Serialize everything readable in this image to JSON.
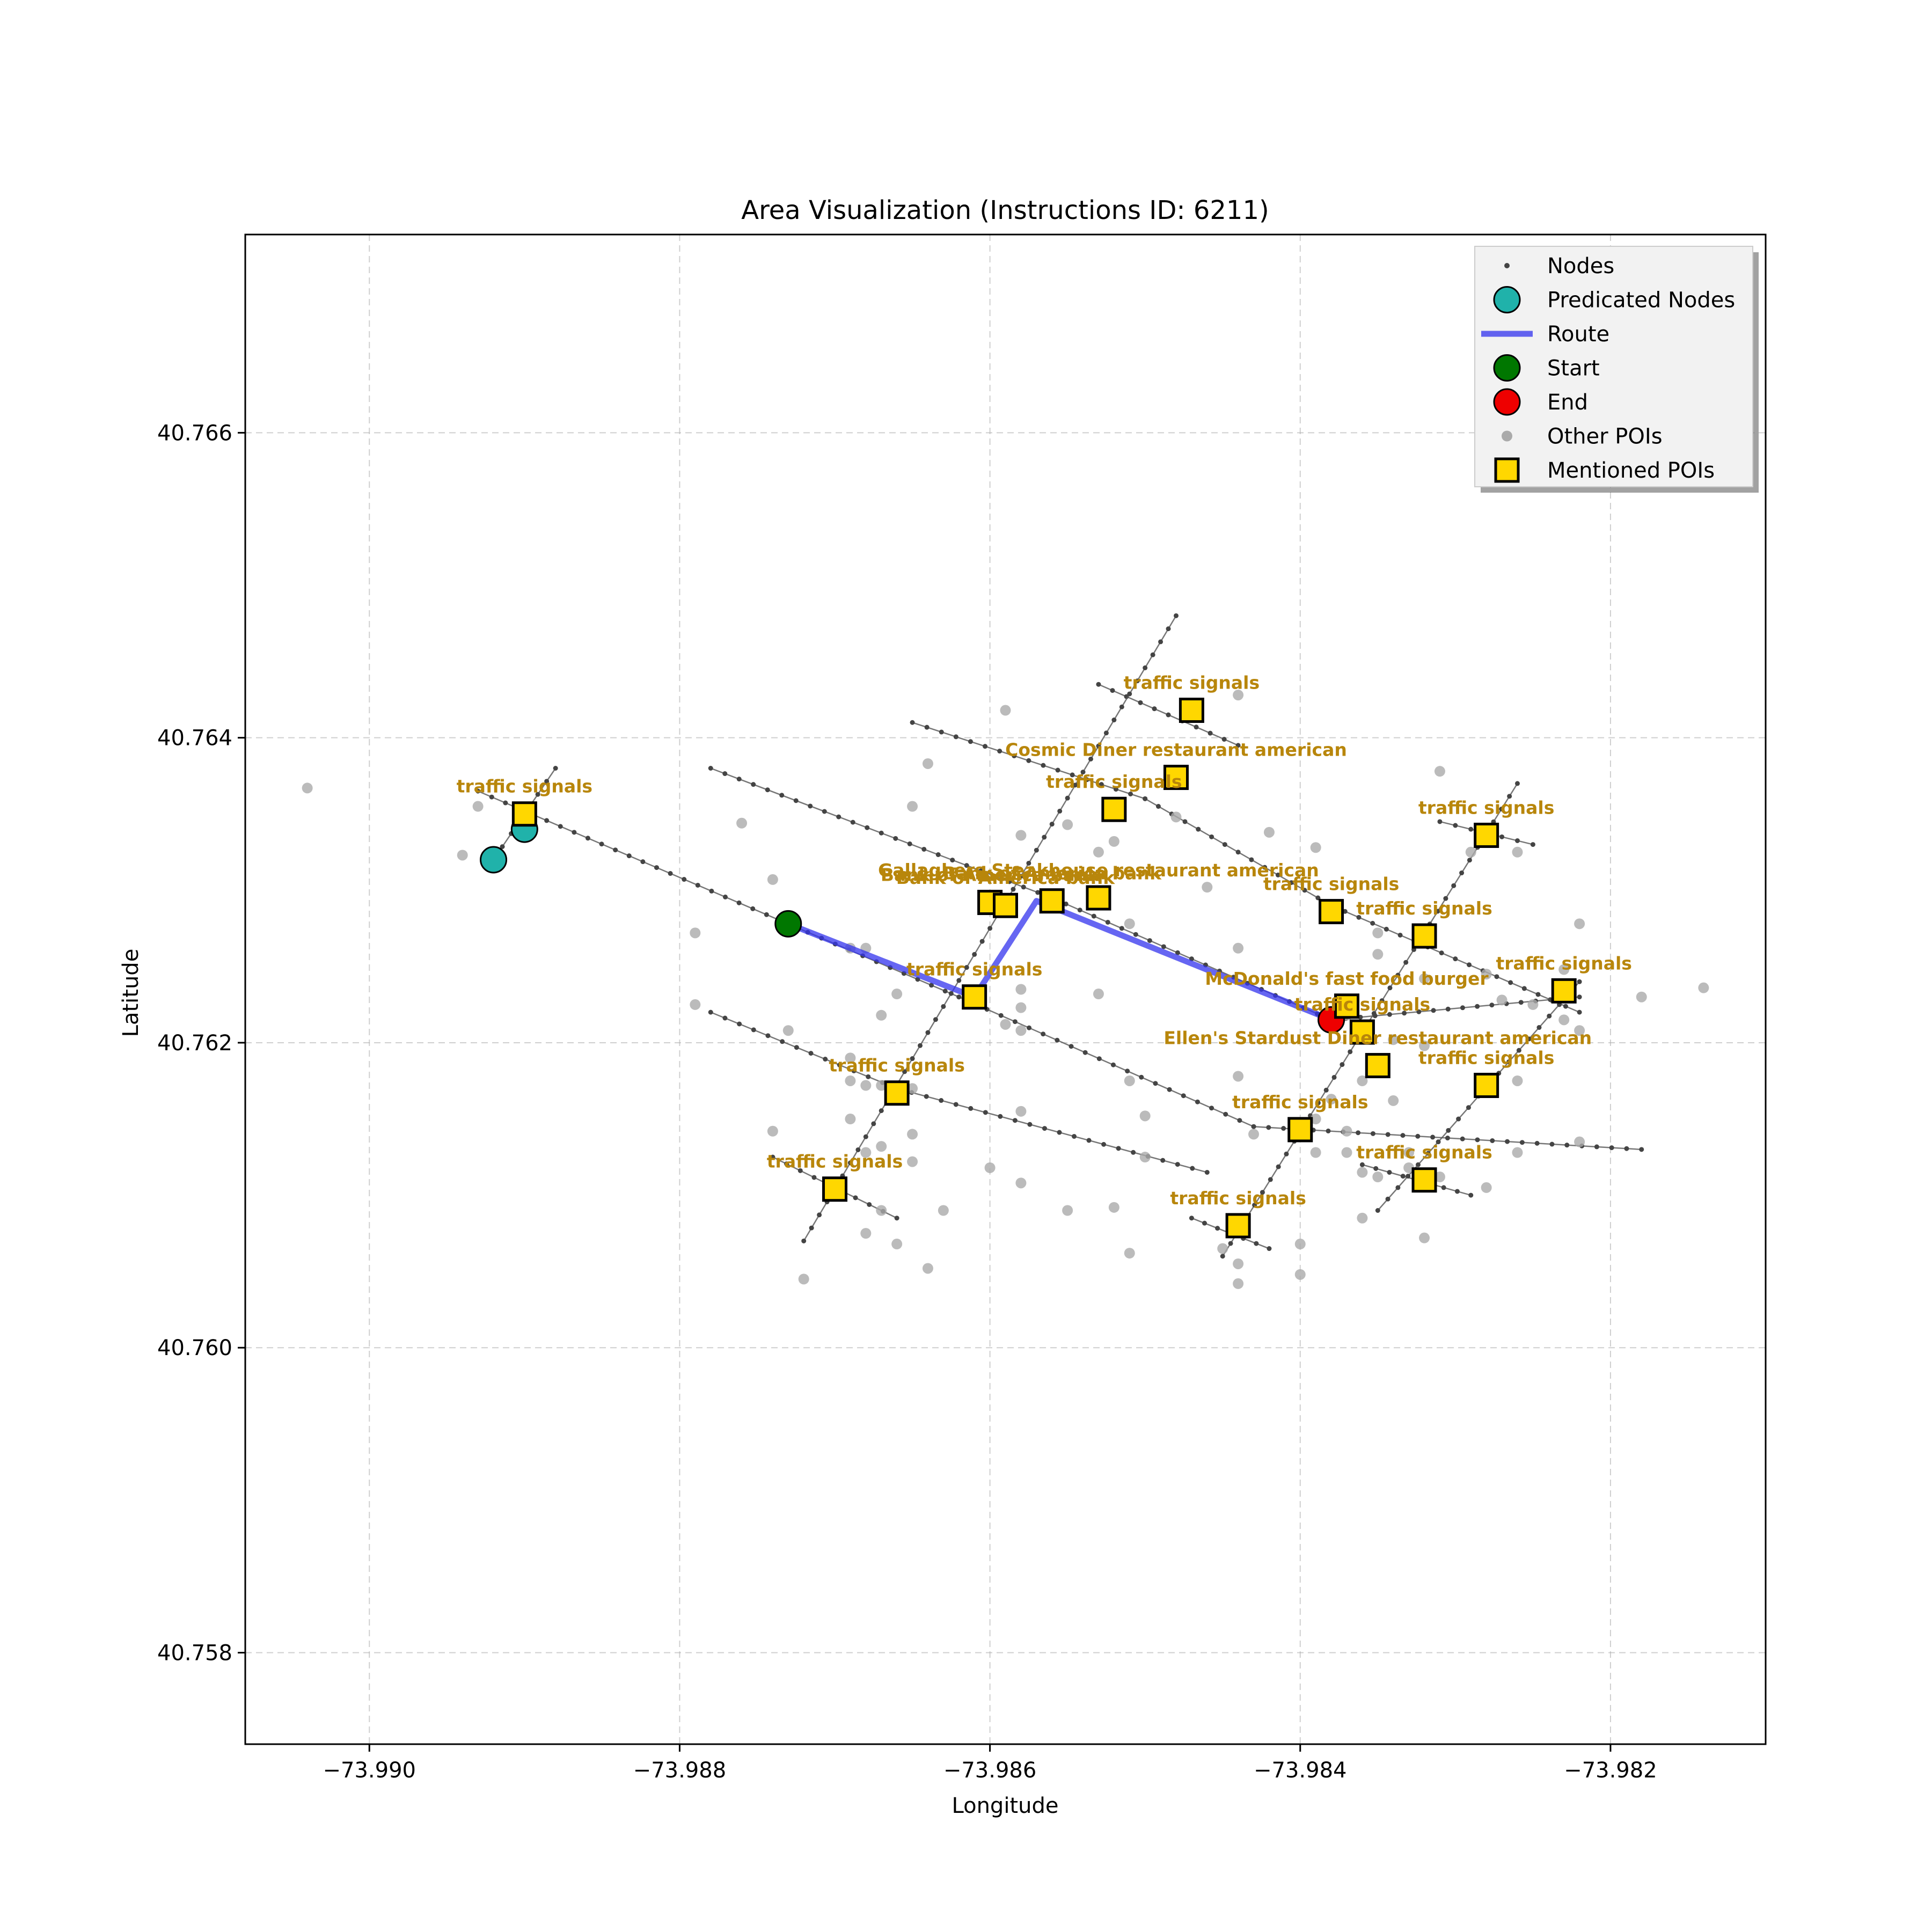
{
  "chart_data": {
    "type": "scatter",
    "title": "Area Visualization (Instructions ID: 6211)",
    "xlabel": "Longitude",
    "ylabel": "Latitude",
    "xlim": [
      -73.9908,
      -73.981
    ],
    "ylim": [
      40.7574,
      40.7673
    ],
    "xticks": [
      -73.99,
      -73.988,
      -73.986,
      -73.984,
      -73.982
    ],
    "xtick_labels": [
      "−73.990",
      "−73.988",
      "−73.986",
      "−73.984",
      "−73.982"
    ],
    "yticks": [
      40.758,
      40.76,
      40.762,
      40.764,
      40.766
    ],
    "ytick_labels": [
      "40.758",
      "40.760",
      "40.762",
      "40.764",
      "40.766"
    ],
    "grid": true,
    "legend_position": "top-right",
    "legend": [
      {
        "key": "nodes",
        "label": "Nodes"
      },
      {
        "key": "predicated",
        "label": "Predicated Nodes"
      },
      {
        "key": "route",
        "label": "Route"
      },
      {
        "key": "start",
        "label": "Start"
      },
      {
        "key": "end",
        "label": "End"
      },
      {
        "key": "other_pois",
        "label": "Other POIs"
      },
      {
        "key": "mentioned_pois",
        "label": "Mentioned POIs"
      }
    ],
    "colors": {
      "nodes": "#444444",
      "streets": "#555555",
      "predicated": "#20b2aa",
      "route": "#3333ee",
      "start": "#007700",
      "end": "#ee0000",
      "other_pois": "#aaaaaa",
      "mentioned_fill": "#ffd700",
      "mentioned_label": "#b8860b"
    },
    "streets": [
      [
        [
          -73.9893,
          40.76365
        ],
        [
          -73.9862,
          40.7623
        ],
        [
          -73.9843,
          40.76145
        ],
        [
          -73.9818,
          40.7613
        ]
      ],
      [
        [
          -73.9878,
          40.7638
        ],
        [
          -73.9856,
          40.76295
        ],
        [
          -73.9838,
          40.76215
        ],
        [
          -73.9822,
          40.7623
        ]
      ],
      [
        [
          -73.9865,
          40.7641
        ],
        [
          -73.985,
          40.7636
        ],
        [
          -73.9838,
          40.7629
        ],
        [
          -73.9822,
          40.7622
        ]
      ],
      [
        [
          -73.9878,
          40.7622
        ],
        [
          -73.9866,
          40.7617
        ],
        [
          -73.9846,
          40.76115
        ]
      ],
      [
        [
          -73.9853,
          40.76435
        ],
        [
          -73.9844,
          40.76395
        ]
      ],
      [
        [
          -73.9874,
          40.76125
        ],
        [
          -73.9866,
          40.76085
        ]
      ],
      [
        [
          -73.9847,
          40.76085
        ],
        [
          -73.9842,
          40.76065
        ]
      ],
      [
        [
          -73.9831,
          40.76345
        ],
        [
          -73.9825,
          40.7633
        ]
      ],
      [
        [
          -73.9836,
          40.7612
        ],
        [
          -73.9829,
          40.761
        ]
      ],
      [
        [
          -73.9888,
          40.7638
        ],
        [
          -73.9892,
          40.7632
        ]
      ],
      [
        [
          -73.9872,
          40.7607
        ],
        [
          -73.9848,
          40.7648
        ]
      ],
      [
        [
          -73.9845,
          40.7606
        ],
        [
          -73.9826,
          40.7637
        ]
      ],
      [
        [
          -73.9835,
          40.7609
        ],
        [
          -73.9822,
          40.7624
        ]
      ]
    ],
    "route": [
      [
        -73.9873,
        40.76278
      ],
      [
        -73.9861,
        40.7623
      ],
      [
        -73.9857,
        40.76293
      ],
      [
        -73.9838,
        40.76215
      ]
    ],
    "start": [
      -73.9873,
      40.76278
    ],
    "end": [
      -73.9838,
      40.76215
    ],
    "predicated_nodes": [
      [
        -73.989,
        40.7634
      ],
      [
        -73.9892,
        40.7632
      ]
    ],
    "other_pois": [
      [
        -73.9904,
        40.76367
      ],
      [
        -73.9894,
        40.76323
      ],
      [
        -73.9893,
        40.76355
      ],
      [
        -73.9874,
        40.76307
      ],
      [
        -73.9879,
        40.76272
      ],
      [
        -73.9876,
        40.76344
      ],
      [
        -73.9879,
        40.76225
      ],
      [
        -73.9873,
        40.76208
      ],
      [
        -73.9865,
        40.76355
      ],
      [
        -73.9864,
        40.76383
      ],
      [
        -73.9859,
        40.76418
      ],
      [
        -73.9858,
        40.76336
      ],
      [
        -73.9855,
        40.76343
      ],
      [
        -73.9853,
        40.76325
      ],
      [
        -73.9852,
        40.76332
      ],
      [
        -73.9851,
        40.76278
      ],
      [
        -73.9848,
        40.76348
      ],
      [
        -73.9846,
        40.76302
      ],
      [
        -73.9844,
        40.76428
      ],
      [
        -73.9842,
        40.76338
      ],
      [
        -73.9839,
        40.76328
      ],
      [
        -73.9844,
        40.76262
      ],
      [
        -73.9835,
        40.76272
      ],
      [
        -73.9835,
        40.76258
      ],
      [
        -73.9831,
        40.76378
      ],
      [
        -73.9829,
        40.76325
      ],
      [
        -73.9826,
        40.76325
      ],
      [
        -73.9822,
        40.76278
      ],
      [
        -73.9823,
        40.76248
      ],
      [
        -73.9818,
        40.7623
      ],
      [
        -73.9814,
        40.76236
      ],
      [
        -73.9858,
        40.76235
      ],
      [
        -73.9858,
        40.76223
      ],
      [
        -73.9859,
        40.76212
      ],
      [
        -73.9858,
        40.76208
      ],
      [
        -73.9853,
        40.76232
      ],
      [
        -73.9866,
        40.76232
      ],
      [
        -73.9867,
        40.76218
      ],
      [
        -73.9868,
        40.76262
      ],
      [
        -73.9869,
        40.7619
      ],
      [
        -73.9869,
        40.76175
      ],
      [
        -73.9868,
        40.76172
      ],
      [
        -73.9867,
        40.76172
      ],
      [
        -73.9865,
        40.7617
      ],
      [
        -73.9869,
        40.7615
      ],
      [
        -73.9868,
        40.76128
      ],
      [
        -73.9867,
        40.76132
      ],
      [
        -73.9865,
        40.7614
      ],
      [
        -73.9865,
        40.76122
      ],
      [
        -73.9867,
        40.7609
      ],
      [
        -73.9866,
        40.76068
      ],
      [
        -73.9864,
        40.76052
      ],
      [
        -73.9863,
        40.7609
      ],
      [
        -73.9872,
        40.76045
      ],
      [
        -73.9874,
        40.76142
      ],
      [
        -73.9868,
        40.76075
      ],
      [
        -73.986,
        40.76118
      ],
      [
        -73.9858,
        40.76108
      ],
      [
        -73.9858,
        40.76155
      ],
      [
        -73.9852,
        40.76092
      ],
      [
        -73.9851,
        40.76175
      ],
      [
        -73.9851,
        40.76062
      ],
      [
        -73.985,
        40.76152
      ],
      [
        -73.985,
        40.76125
      ],
      [
        -73.9844,
        40.76178
      ],
      [
        -73.9843,
        40.7614
      ],
      [
        -73.9845,
        40.76065
      ],
      [
        -73.9844,
        40.76042
      ],
      [
        -73.9844,
        40.76055
      ],
      [
        -73.984,
        40.76068
      ],
      [
        -73.984,
        40.76048
      ],
      [
        -73.9839,
        40.7615
      ],
      [
        -73.9839,
        40.76128
      ],
      [
        -73.9838,
        40.76163
      ],
      [
        -73.9837,
        40.76142
      ],
      [
        -73.9837,
        40.76128
      ],
      [
        -73.9836,
        40.76175
      ],
      [
        -73.9836,
        40.76115
      ],
      [
        -73.9836,
        40.76085
      ],
      [
        -73.9835,
        40.76112
      ],
      [
        -73.9834,
        40.76162
      ],
      [
        -73.9834,
        40.76202
      ],
      [
        -73.9833,
        40.76118
      ],
      [
        -73.9833,
        40.76128
      ],
      [
        -73.9832,
        40.76198
      ],
      [
        -73.9832,
        40.76072
      ],
      [
        -73.9831,
        40.76112
      ],
      [
        -73.9828,
        40.76105
      ],
      [
        -73.9826,
        40.76128
      ],
      [
        -73.9826,
        40.76175
      ],
      [
        -73.9825,
        40.76225
      ],
      [
        -73.9823,
        40.76215
      ],
      [
        -73.9822,
        40.76135
      ],
      [
        -73.9822,
        40.76208
      ],
      [
        -73.9827,
        40.76228
      ],
      [
        -73.9828,
        40.76245
      ],
      [
        -73.9832,
        40.76242
      ],
      [
        -73.9837,
        40.76218
      ],
      [
        -73.9855,
        40.7609
      ],
      [
        -73.9869,
        40.76262
      ]
    ],
    "mentioned_pois": [
      {
        "label": "traffic signals",
        "lon": -73.989,
        "lat": 40.7635
      },
      {
        "label": "traffic signals",
        "lon": -73.9847,
        "lat": 40.76418
      },
      {
        "label": "Cosmic Diner restaurant american",
        "lon": -73.9848,
        "lat": 40.76374
      },
      {
        "label": "traffic signals",
        "lon": -73.9852,
        "lat": 40.76353
      },
      {
        "label": "traffic signals",
        "lon": -73.9828,
        "lat": 40.76336
      },
      {
        "label": "Bank of America bank",
        "lon": -73.986,
        "lat": 40.76292
      },
      {
        "label": "Bank of America bank",
        "lon": -73.9859,
        "lat": 40.7629
      },
      {
        "label": "Bank of America bank",
        "lon": -73.9856,
        "lat": 40.76293
      },
      {
        "label": "Gallaghers Steakhouse restaurant american",
        "lon": -73.9853,
        "lat": 40.76295
      },
      {
        "label": "traffic signals",
        "lon": -73.9838,
        "lat": 40.76286
      },
      {
        "label": "traffic signals",
        "lon": -73.9832,
        "lat": 40.7627
      },
      {
        "label": "traffic signals",
        "lon": -73.9823,
        "lat": 40.76234
      },
      {
        "label": "traffic signals",
        "lon": -73.9861,
        "lat": 40.7623
      },
      {
        "label": "McDonald's fast food burger",
        "lon": -73.9837,
        "lat": 40.76224
      },
      {
        "label": "traffic signals",
        "lon": -73.9836,
        "lat": 40.76207
      },
      {
        "label": "Ellen's Stardust Diner restaurant american",
        "lon": -73.9835,
        "lat": 40.76185
      },
      {
        "label": "traffic signals",
        "lon": -73.9828,
        "lat": 40.76172
      },
      {
        "label": "traffic signals",
        "lon": -73.9866,
        "lat": 40.76167
      },
      {
        "label": "traffic signals",
        "lon": -73.984,
        "lat": 40.76143
      },
      {
        "label": "traffic signals",
        "lon": -73.9832,
        "lat": 40.7611
      },
      {
        "label": "traffic signals",
        "lon": -73.987,
        "lat": 40.76104
      },
      {
        "label": "traffic signals",
        "lon": -73.9844,
        "lat": 40.7608
      }
    ]
  }
}
